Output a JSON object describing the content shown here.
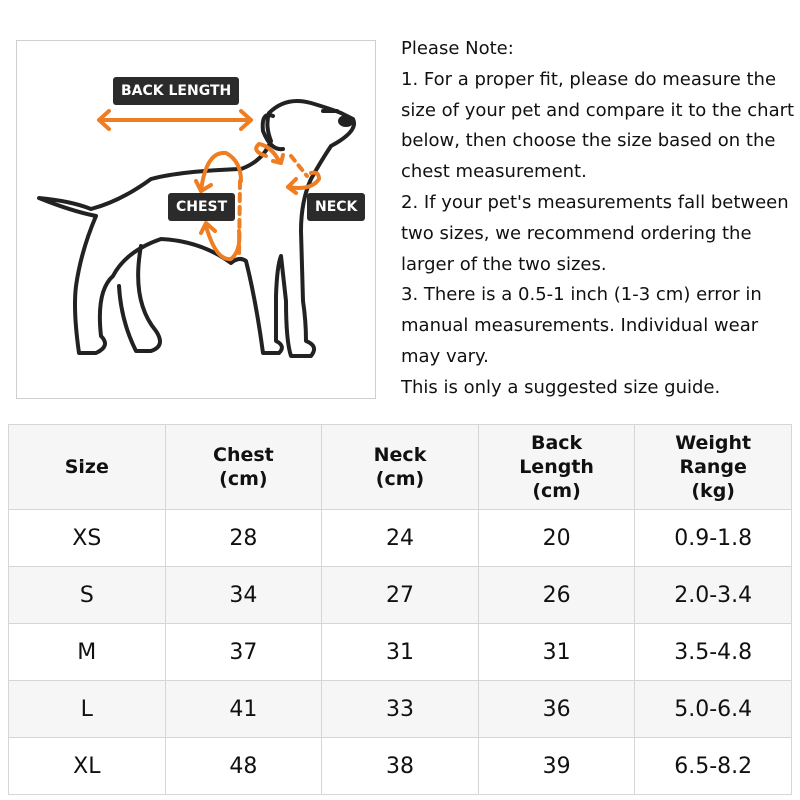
{
  "diagram": {
    "labels": {
      "back_length": "BACK LENGTH",
      "chest": "CHEST",
      "neck": "NECK"
    },
    "colors": {
      "arrow": "#ef7d22",
      "outline": "#222222",
      "tag_bg": "#2b2b2b"
    }
  },
  "note": {
    "title": "Please Note:",
    "lines": [
      "1. For a proper fit, please do measure the size of your pet and compare it to the chart below, then choose the size based on the chest measurement.",
      "2. If your pet's measurements fall between two sizes, we recommend ordering the larger of the two sizes.",
      "3. There is a 0.5-1 inch (1-3 cm) error in manual measurements. Individual wear may vary.",
      "This is only a suggested size guide."
    ]
  },
  "table": {
    "headers": [
      [
        "Size"
      ],
      [
        "Chest",
        "(cm)"
      ],
      [
        "Neck",
        "(cm)"
      ],
      [
        "Back",
        "Length",
        "(cm)"
      ],
      [
        "Weight",
        "Range",
        "(kg)"
      ]
    ],
    "rows": [
      [
        "XS",
        "28",
        "24",
        "20",
        "0.9-1.8"
      ],
      [
        "S",
        "34",
        "27",
        "26",
        "2.0-3.4"
      ],
      [
        "M",
        "37",
        "31",
        "31",
        "3.5-4.8"
      ],
      [
        "L",
        "41",
        "33",
        "36",
        "5.0-6.4"
      ],
      [
        "XL",
        "48",
        "38",
        "39",
        "6.5-8.2"
      ]
    ]
  }
}
